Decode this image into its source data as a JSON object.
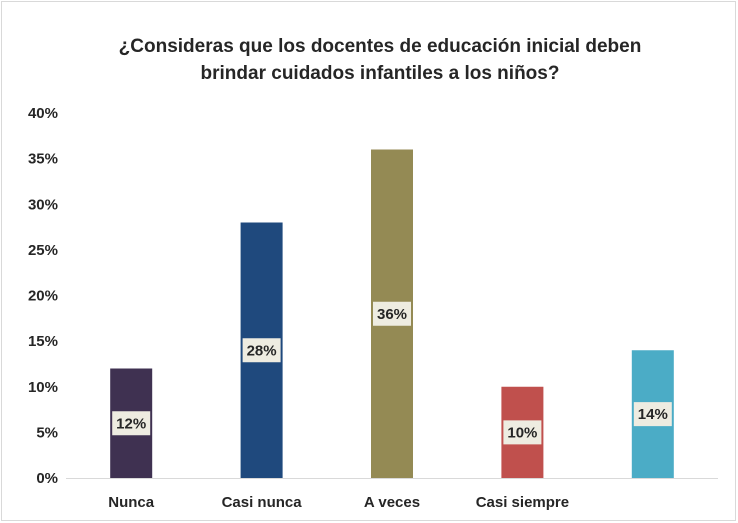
{
  "chart_data": {
    "type": "bar",
    "title": "¿Consideras que los docentes de educación inicial deben brindar cuidados infantiles a los niños?",
    "title_lines": [
      "¿Consideras que los docentes de educación inicial deben",
      "brindar cuidados infantiles a los niños?"
    ],
    "categories": [
      "Nunca",
      "Casi nunca",
      "A veces",
      "Casi siempre",
      ""
    ],
    "values": [
      12,
      28,
      36,
      10,
      14
    ],
    "data_labels": [
      "12%",
      "28%",
      "36%",
      "10%",
      "14%"
    ],
    "colors": [
      "#3f3151",
      "#1f497d",
      "#948a54",
      "#c0504d",
      "#4bacc6"
    ],
    "label_box_color": "#eeece1",
    "ylim": [
      0,
      40
    ],
    "yticks": [
      0,
      5,
      10,
      15,
      20,
      25,
      30,
      35,
      40
    ],
    "ytick_labels": [
      "0%",
      "5%",
      "10%",
      "15%",
      "20%",
      "25%",
      "30%",
      "35%",
      "40%"
    ],
    "xlabel": "",
    "ylabel": "",
    "grid": false,
    "legend": "none"
  }
}
